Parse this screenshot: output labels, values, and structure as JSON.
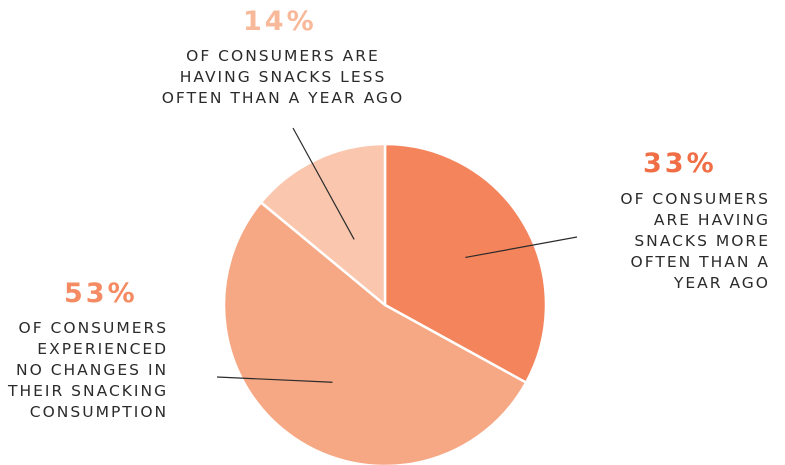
{
  "chart_data": {
    "type": "pie",
    "slices": [
      {
        "value": 33,
        "percent_label": "33%",
        "description_lines": [
          "OF CONSUMERS",
          "ARE HAVING",
          "SNACKS MORE",
          "OFTEN THAN A",
          "YEAR AGO"
        ],
        "color": "#f4845c",
        "label_color": "#f06d45"
      },
      {
        "value": 53,
        "percent_label": "53%",
        "description_lines": [
          "OF CONSUMERS",
          "EXPERIENCED",
          "NO CHANGES IN",
          "THEIR SNACKING",
          "CONSUMPTION"
        ],
        "color": "#f6a783",
        "label_color": "#f48b63"
      },
      {
        "value": 14,
        "percent_label": "14%",
        "description_lines": [
          "OF CONSUMERS ARE",
          "HAVING SNACKS LESS",
          "OFTEN THAN A YEAR AGO"
        ],
        "color": "#fac7ae",
        "label_color": "#f8b89a"
      }
    ]
  }
}
